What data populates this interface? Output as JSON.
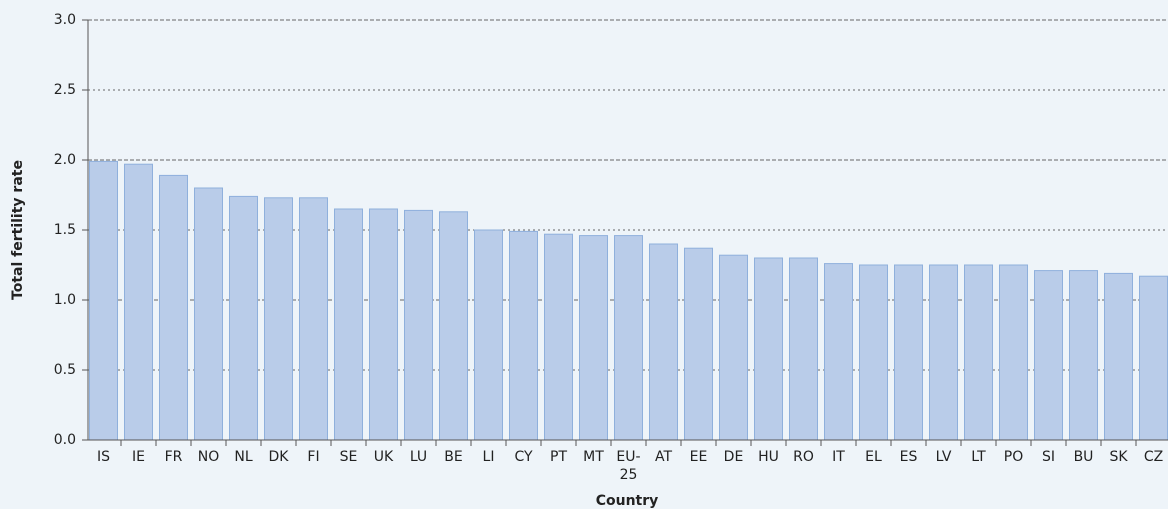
{
  "chart_data": {
    "type": "bar",
    "x_label": "Country",
    "y_label": "Total fertility rate",
    "categories": [
      "IS",
      "IE",
      "FR",
      "NO",
      "NL",
      "DK",
      "FI",
      "SE",
      "UK",
      "LU",
      "BE",
      "LI",
      "CY",
      "PT",
      "MT",
      "EU-25",
      "AT",
      "EE",
      "DE",
      "HU",
      "RO",
      "IT",
      "EL",
      "ES",
      "LV",
      "LT",
      "PO",
      "SI",
      "BU",
      "SK",
      "CZ"
    ],
    "values": [
      1.99,
      1.97,
      1.89,
      1.8,
      1.74,
      1.73,
      1.73,
      1.65,
      1.65,
      1.64,
      1.63,
      1.5,
      1.49,
      1.47,
      1.46,
      1.46,
      1.4,
      1.37,
      1.32,
      1.3,
      1.3,
      1.26,
      1.25,
      1.25,
      1.25,
      1.25,
      1.25,
      1.21,
      1.21,
      1.19,
      1.17
    ],
    "color": "#b9cce9",
    "ylim": [
      0,
      3
    ],
    "yticks": [
      {
        "value": 0,
        "label": "0.0"
      },
      0.5,
      {
        "value": 1,
        "label": "1.0"
      },
      1.5,
      {
        "value": 2,
        "label": "2.0"
      },
      2.5,
      {
        "value": 3,
        "label": "3.0"
      }
    ],
    "grid": true
  }
}
